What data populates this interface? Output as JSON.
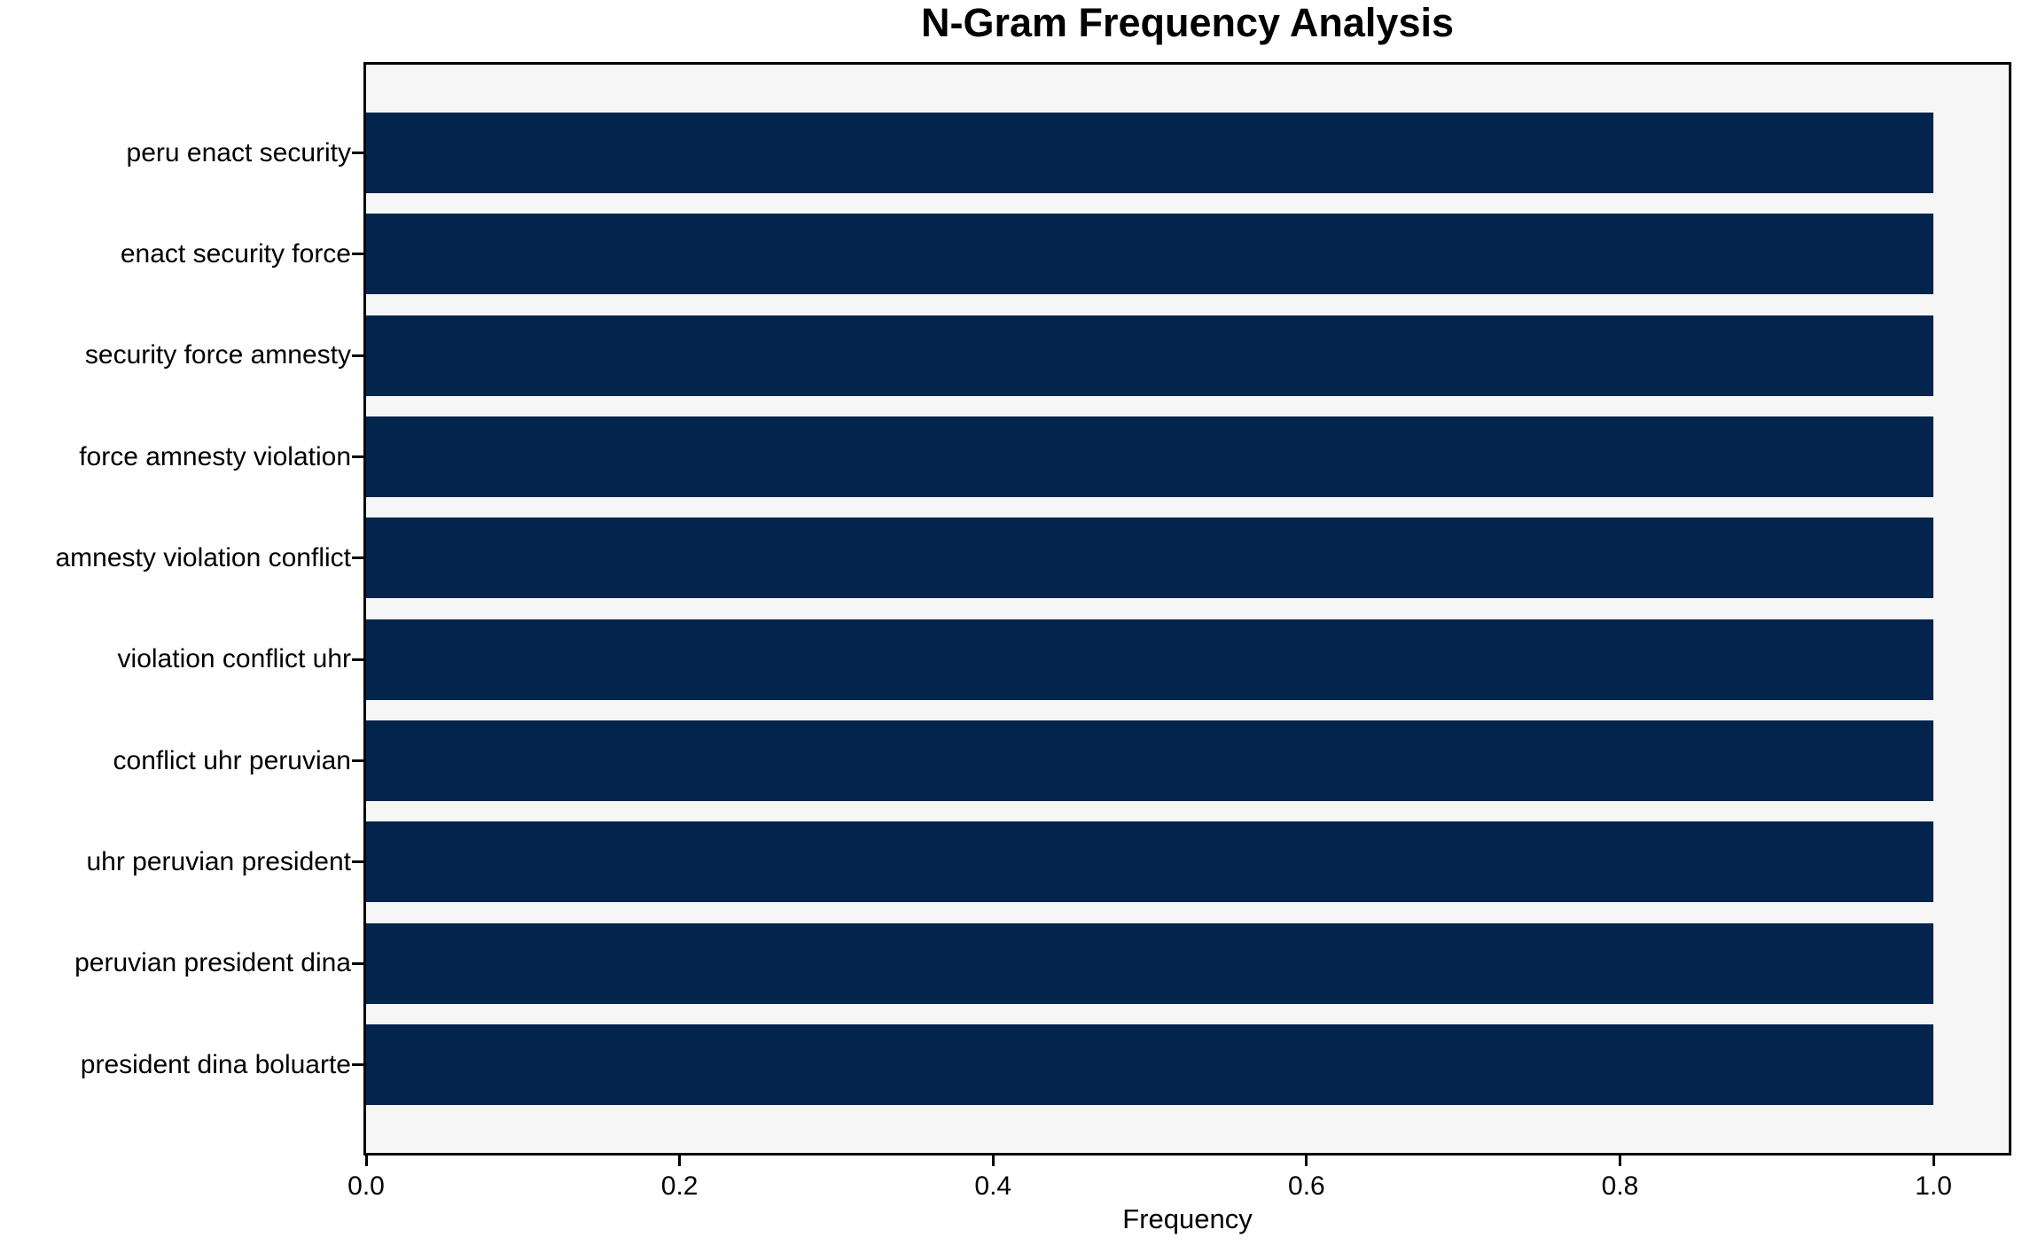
{
  "chart_data": {
    "type": "bar",
    "orientation": "horizontal",
    "title": "N-Gram Frequency Analysis",
    "xlabel": "Frequency",
    "ylabel": "",
    "categories": [
      "peru enact security",
      "enact security force",
      "security force amnesty",
      "force amnesty violation",
      "amnesty violation conflict",
      "violation conflict uhr",
      "conflict uhr peruvian",
      "uhr peruvian president",
      "peruvian president dina",
      "president dina boluarte"
    ],
    "values": [
      1.0,
      1.0,
      1.0,
      1.0,
      1.0,
      1.0,
      1.0,
      1.0,
      1.0,
      1.0
    ],
    "xticks": [
      "0.0",
      "0.2",
      "0.4",
      "0.6",
      "0.8",
      "1.0"
    ],
    "xtick_values": [
      0.0,
      0.2,
      0.4,
      0.6,
      0.8,
      1.0
    ],
    "xlim": [
      0,
      1.048
    ],
    "grid": false,
    "legend_position": "none",
    "bar_color": "#02244d",
    "plot_background": "#f6f6f7",
    "figure_background": "#ffffff",
    "spine_color": "#000000"
  }
}
